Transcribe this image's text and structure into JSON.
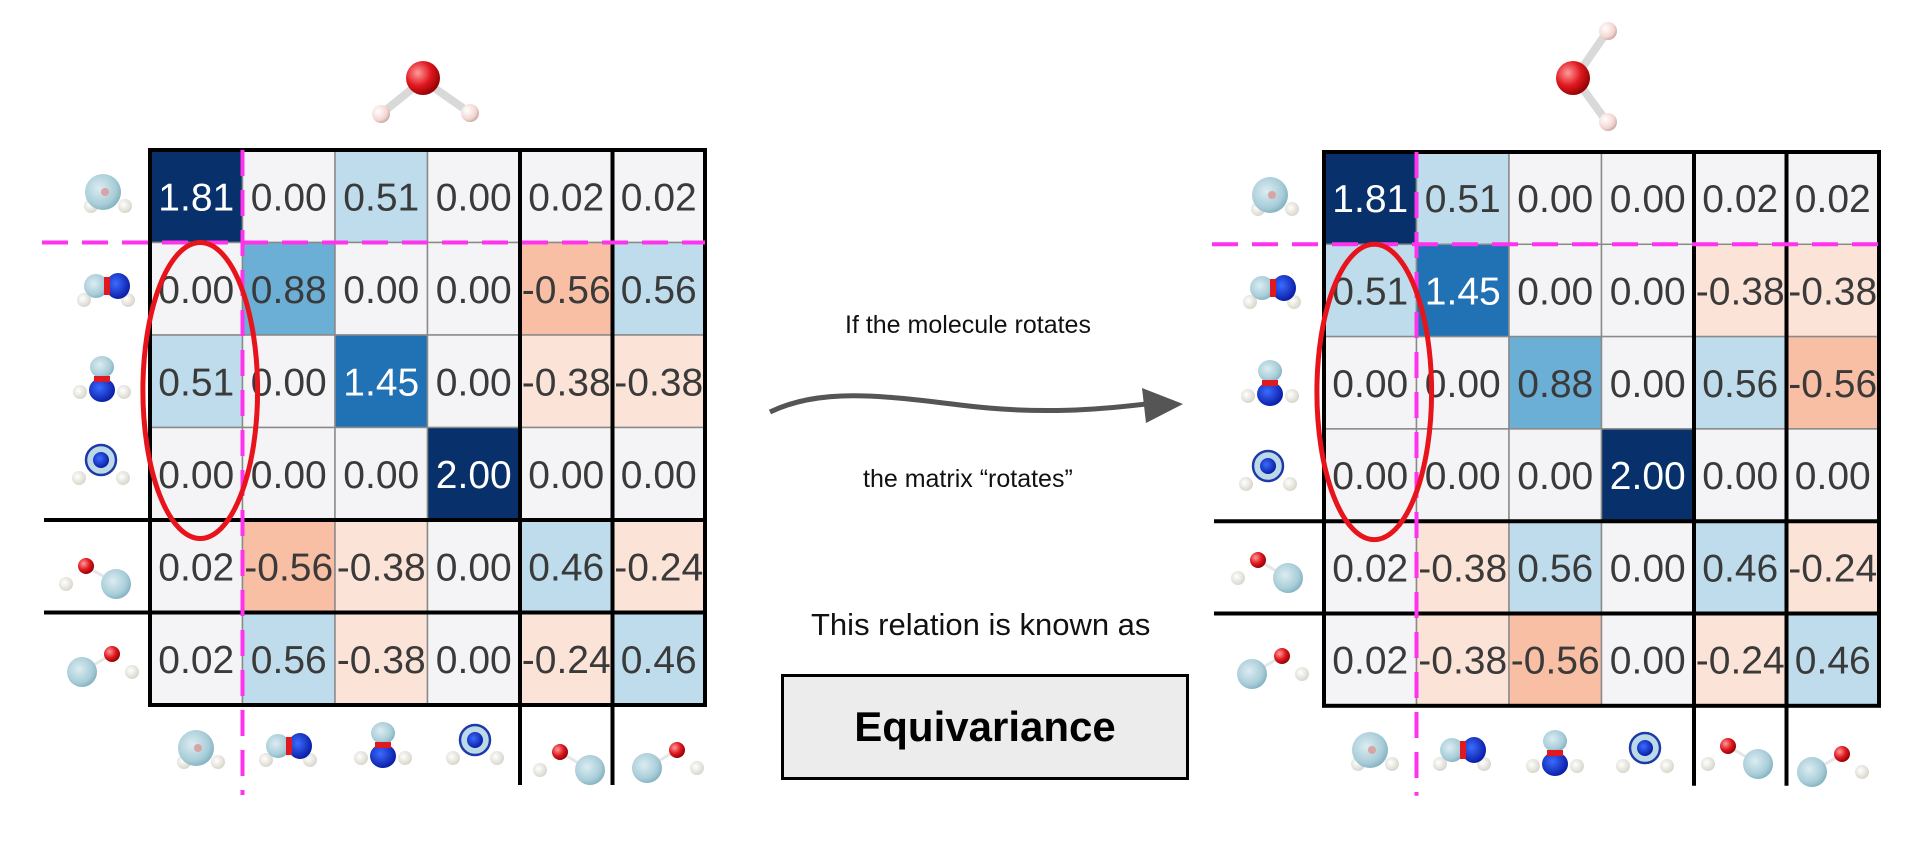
{
  "figure": {
    "caption_top": "If the molecule rotates",
    "caption_bottom": "the matrix “rotates”",
    "relation_text": "This relation is known as",
    "term": "Equivariance"
  },
  "colors": {
    "dark_navy": "#08306b",
    "blue": "#2171b5",
    "mid_blue": "#6baed6",
    "light_blue": "#bedceb",
    "near_white": "#f4f4f6",
    "salmon": "#f8bfa5",
    "peach": "#fbe3d8",
    "dashed_line": "#ff33ee",
    "highlight_ellipse": "#e8141c",
    "arrow": "#555555"
  },
  "matrices": [
    {
      "name": "original",
      "cells": [
        [
          "1.81",
          "0.00",
          "0.51",
          "0.00",
          "0.02",
          "0.02"
        ],
        [
          "0.00",
          "0.88",
          "0.00",
          "0.00",
          "-0.56",
          "0.56"
        ],
        [
          "0.51",
          "0.00",
          "1.45",
          "0.00",
          "-0.38",
          "-0.38"
        ],
        [
          "0.00",
          "0.00",
          "0.00",
          "2.00",
          "0.00",
          "0.00"
        ],
        [
          "0.02",
          "-0.56",
          "-0.38",
          "0.00",
          "0.46",
          "-0.24"
        ],
        [
          "0.02",
          "0.56",
          "-0.38",
          "0.00",
          "-0.24",
          "0.46"
        ]
      ],
      "colors": [
        [
          "#08306b",
          "#f4f4f6",
          "#bedceb",
          "#f4f4f6",
          "#f4f4f6",
          "#f4f4f6"
        ],
        [
          "#f4f4f6",
          "#6baed6",
          "#f4f4f6",
          "#f4f4f6",
          "#f8bfa5",
          "#bedceb"
        ],
        [
          "#bedceb",
          "#f4f4f6",
          "#2171b5",
          "#f4f4f6",
          "#fbe3d8",
          "#fbe3d8"
        ],
        [
          "#f4f4f6",
          "#f4f4f6",
          "#f4f4f6",
          "#08306b",
          "#f4f4f6",
          "#f4f4f6"
        ],
        [
          "#f4f4f6",
          "#f8bfa5",
          "#fbe3d8",
          "#f4f4f6",
          "#bedceb",
          "#fbe3d8"
        ],
        [
          "#f4f4f6",
          "#bedceb",
          "#fbe3d8",
          "#f4f4f6",
          "#fbe3d8",
          "#bedceb"
        ]
      ]
    },
    {
      "name": "rotated",
      "cells": [
        [
          "1.81",
          "0.51",
          "0.00",
          "0.00",
          "0.02",
          "0.02"
        ],
        [
          "0.51",
          "1.45",
          "0.00",
          "0.00",
          "-0.38",
          "-0.38"
        ],
        [
          "0.00",
          "0.00",
          "0.88",
          "0.00",
          "0.56",
          "-0.56"
        ],
        [
          "0.00",
          "0.00",
          "0.00",
          "2.00",
          "0.00",
          "0.00"
        ],
        [
          "0.02",
          "-0.38",
          "0.56",
          "0.00",
          "0.46",
          "-0.24"
        ],
        [
          "0.02",
          "-0.38",
          "-0.56",
          "0.00",
          "-0.24",
          "0.46"
        ]
      ],
      "colors": [
        [
          "#08306b",
          "#bedceb",
          "#f4f4f6",
          "#f4f4f6",
          "#f4f4f6",
          "#f4f4f6"
        ],
        [
          "#bedceb",
          "#2171b5",
          "#f4f4f6",
          "#f4f4f6",
          "#fbe3d8",
          "#fbe3d8"
        ],
        [
          "#f4f4f6",
          "#f4f4f6",
          "#6baed6",
          "#f4f4f6",
          "#bedceb",
          "#f8bfa5"
        ],
        [
          "#f4f4f6",
          "#f4f4f6",
          "#f4f4f6",
          "#08306b",
          "#f4f4f6",
          "#f4f4f6"
        ],
        [
          "#f4f4f6",
          "#fbe3d8",
          "#bedceb",
          "#f4f4f6",
          "#bedceb",
          "#fbe3d8"
        ],
        [
          "#f4f4f6",
          "#fbe3d8",
          "#f8bfa5",
          "#f4f4f6",
          "#fbe3d8",
          "#bedceb"
        ]
      ]
    }
  ],
  "orbital_icons": {
    "original": [
      "s-orbital-icon",
      "px-orbital-icon",
      "py-orbital-icon",
      "pz-orbital-icon",
      "hydrogen-1-orbital-icon",
      "hydrogen-2-orbital-icon"
    ],
    "rotated": [
      "s-orbital-icon",
      "px-orbital-icon",
      "py-orbital-icon",
      "pz-orbital-icon",
      "hydrogen-1-orbital-icon",
      "hydrogen-2-orbital-icon"
    ]
  },
  "molecule_icons": [
    "water-molecule-icon",
    "rotated-water-molecule-icon"
  ]
}
